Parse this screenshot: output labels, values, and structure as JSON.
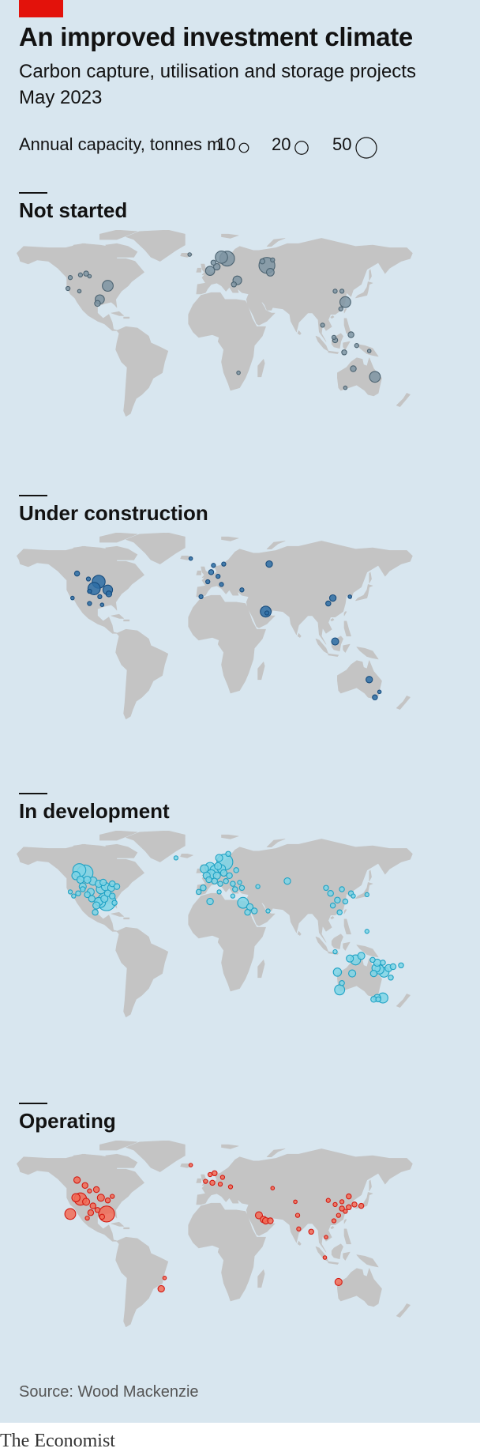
{
  "header": {
    "title": "An improved investment climate",
    "subtitle": "Carbon capture, utilisation and storage projects",
    "date": "May 2023"
  },
  "legend": {
    "label": "Annual capacity, tonnes m",
    "sizes": [
      {
        "label": "10",
        "value": 10
      },
      {
        "label": "20",
        "value": 20
      },
      {
        "label": "50",
        "value": 50
      }
    ]
  },
  "chart_data": [
    {
      "type": "scatter",
      "title": "Not started",
      "color": "#7f95a3",
      "stroke": "#4d6472",
      "size_variable": "Annual capacity, tonnes m",
      "points": [
        {
          "lon": -121,
          "lat": 48,
          "v": 2
        },
        {
          "lon": -112,
          "lat": 50,
          "v": 2
        },
        {
          "lon": -107,
          "lat": 51,
          "v": 3
        },
        {
          "lon": -123,
          "lat": 40,
          "v": 2
        },
        {
          "lon": -113,
          "lat": 38,
          "v": 1.5
        },
        {
          "lon": -88,
          "lat": 42,
          "v": 14
        },
        {
          "lon": -95,
          "lat": 32,
          "v": 10
        },
        {
          "lon": -97,
          "lat": 29,
          "v": 4
        },
        {
          "lon": -104,
          "lat": 49,
          "v": 1.5
        },
        {
          "lon": -16,
          "lat": 65,
          "v": 1.5
        },
        {
          "lon": 5,
          "lat": 59,
          "v": 3
        },
        {
          "lon": 12,
          "lat": 63,
          "v": 18
        },
        {
          "lon": 17,
          "lat": 62,
          "v": 26
        },
        {
          "lon": 2,
          "lat": 53,
          "v": 10
        },
        {
          "lon": 8,
          "lat": 56,
          "v": 5
        },
        {
          "lon": 26,
          "lat": 46,
          "v": 9
        },
        {
          "lon": 23,
          "lat": 43,
          "v": 3
        },
        {
          "lon": 52,
          "lat": 57,
          "v": 30
        },
        {
          "lon": 55,
          "lat": 52,
          "v": 7
        },
        {
          "lon": 48,
          "lat": 60,
          "v": 3
        },
        {
          "lon": 57,
          "lat": 61,
          "v": 2
        },
        {
          "lon": 112,
          "lat": 38,
          "v": 2
        },
        {
          "lon": 118,
          "lat": 38,
          "v": 2
        },
        {
          "lon": 121,
          "lat": 30,
          "v": 14
        },
        {
          "lon": 117,
          "lat": 25,
          "v": 2
        },
        {
          "lon": 101,
          "lat": 13,
          "v": 2
        },
        {
          "lon": 111,
          "lat": 4,
          "v": 2
        },
        {
          "lon": 112,
          "lat": 2,
          "v": 3
        },
        {
          "lon": 126,
          "lat": 6,
          "v": 4
        },
        {
          "lon": 131,
          "lat": -2,
          "v": 2
        },
        {
          "lon": 142,
          "lat": -6,
          "v": 1.5
        },
        {
          "lon": 120,
          "lat": -7,
          "v": 3
        },
        {
          "lon": 128,
          "lat": -19,
          "v": 4
        },
        {
          "lon": 147,
          "lat": -25,
          "v": 14
        },
        {
          "lon": 121,
          "lat": -33,
          "v": 1.5
        },
        {
          "lon": 27,
          "lat": -22,
          "v": 1.5
        }
      ]
    },
    {
      "type": "scatter",
      "title": "Under construction",
      "color": "#2e6ea6",
      "stroke": "#174c7e",
      "size_variable": "Annual capacity, tonnes m",
      "points": [
        {
          "lon": -115,
          "lat": 53,
          "v": 3
        },
        {
          "lon": -105,
          "lat": 49,
          "v": 2
        },
        {
          "lon": -96,
          "lat": 47,
          "v": 20
        },
        {
          "lon": -100,
          "lat": 42,
          "v": 18
        },
        {
          "lon": -88,
          "lat": 41,
          "v": 11
        },
        {
          "lon": -87,
          "lat": 38,
          "v": 4
        },
        {
          "lon": -104,
          "lat": 40,
          "v": 2
        },
        {
          "lon": -95,
          "lat": 36,
          "v": 2
        },
        {
          "lon": -104,
          "lat": 31,
          "v": 2
        },
        {
          "lon": -93,
          "lat": 30,
          "v": 1.5
        },
        {
          "lon": -119,
          "lat": 35,
          "v": 1.5
        },
        {
          "lon": -15,
          "lat": 64,
          "v": 1.5
        },
        {
          "lon": 5,
          "lat": 59,
          "v": 2
        },
        {
          "lon": 14,
          "lat": 60,
          "v": 2
        },
        {
          "lon": 3,
          "lat": 54,
          "v": 3
        },
        {
          "lon": 9,
          "lat": 51,
          "v": 2
        },
        {
          "lon": 0,
          "lat": 47,
          "v": 2
        },
        {
          "lon": 12,
          "lat": 45,
          "v": 2
        },
        {
          "lon": 30,
          "lat": 41,
          "v": 2
        },
        {
          "lon": -6,
          "lat": 36,
          "v": 2
        },
        {
          "lon": 54,
          "lat": 60,
          "v": 5
        },
        {
          "lon": 51,
          "lat": 25,
          "v": 14
        },
        {
          "lon": 52,
          "lat": 24,
          "v": 2
        },
        {
          "lon": 110,
          "lat": 35,
          "v": 5
        },
        {
          "lon": 106,
          "lat": 31,
          "v": 3
        },
        {
          "lon": 125,
          "lat": 36,
          "v": 1.5
        },
        {
          "lon": 112,
          "lat": 3,
          "v": 6
        },
        {
          "lon": 142,
          "lat": -25,
          "v": 5
        },
        {
          "lon": 147,
          "lat": -38,
          "v": 3
        },
        {
          "lon": 151,
          "lat": -34,
          "v": 1.5
        }
      ]
    },
    {
      "type": "scatter",
      "title": "In development",
      "color": "#7fd5e6",
      "stroke": "#1fa2c4",
      "size_variable": "Annual capacity, tonnes m",
      "points": [
        {
          "lon": -113,
          "lat": 54,
          "v": 20
        },
        {
          "lon": -108,
          "lat": 52,
          "v": 30
        },
        {
          "lon": -116,
          "lat": 50,
          "v": 8
        },
        {
          "lon": -112,
          "lat": 47,
          "v": 6
        },
        {
          "lon": -106,
          "lat": 47,
          "v": 6
        },
        {
          "lon": -101,
          "lat": 46,
          "v": 8
        },
        {
          "lon": -96,
          "lat": 44,
          "v": 6
        },
        {
          "lon": -90,
          "lat": 42,
          "v": 8
        },
        {
          "lon": -85,
          "lat": 41,
          "v": 6
        },
        {
          "lon": -94,
          "lat": 40,
          "v": 10
        },
        {
          "lon": -88,
          "lat": 37,
          "v": 5
        },
        {
          "lon": -84,
          "lat": 35,
          "v": 4
        },
        {
          "lon": -91,
          "lat": 33,
          "v": 6
        },
        {
          "lon": -96,
          "lat": 31,
          "v": 8
        },
        {
          "lon": -89,
          "lat": 31,
          "v": 40
        },
        {
          "lon": -94,
          "lat": 30,
          "v": 10
        },
        {
          "lon": -98,
          "lat": 28,
          "v": 6
        },
        {
          "lon": -102,
          "lat": 33,
          "v": 5
        },
        {
          "lon": -106,
          "lat": 36,
          "v": 4
        },
        {
          "lon": -110,
          "lat": 40,
          "v": 3
        },
        {
          "lon": -114,
          "lat": 37,
          "v": 3
        },
        {
          "lon": -118,
          "lat": 35,
          "v": 2
        },
        {
          "lon": -121,
          "lat": 38,
          "v": 2
        },
        {
          "lon": -84,
          "lat": 44,
          "v": 4
        },
        {
          "lon": -80,
          "lat": 42,
          "v": 4
        },
        {
          "lon": -110,
          "lat": 42,
          "v": 6
        },
        {
          "lon": -103,
          "lat": 38,
          "v": 6
        },
        {
          "lon": -92,
          "lat": 45,
          "v": 5
        },
        {
          "lon": -99,
          "lat": 23,
          "v": 4
        },
        {
          "lon": -82,
          "lat": 30,
          "v": 3
        },
        {
          "lon": -28,
          "lat": 63,
          "v": 2
        },
        {
          "lon": 15,
          "lat": 60,
          "v": 30
        },
        {
          "lon": 10,
          "lat": 63,
          "v": 6
        },
        {
          "lon": 18,
          "lat": 66,
          "v": 3
        },
        {
          "lon": 2,
          "lat": 56,
          "v": 12
        },
        {
          "lon": -3,
          "lat": 55,
          "v": 8
        },
        {
          "lon": 6,
          "lat": 54,
          "v": 10
        },
        {
          "lon": 9,
          "lat": 57,
          "v": 6
        },
        {
          "lon": 12,
          "lat": 55,
          "v": 8
        },
        {
          "lon": 3,
          "lat": 51,
          "v": 10
        },
        {
          "lon": -1,
          "lat": 50,
          "v": 6
        },
        {
          "lon": 8,
          "lat": 50,
          "v": 6
        },
        {
          "lon": 14,
          "lat": 52,
          "v": 5
        },
        {
          "lon": 19,
          "lat": 50,
          "v": 4
        },
        {
          "lon": 1,
          "lat": 47,
          "v": 4
        },
        {
          "lon": 6,
          "lat": 46,
          "v": 4
        },
        {
          "lon": -4,
          "lat": 41,
          "v": 4
        },
        {
          "lon": 11,
          "lat": 44,
          "v": 3
        },
        {
          "lon": 16,
          "lat": 46,
          "v": 3
        },
        {
          "lon": 22,
          "lat": 44,
          "v": 3
        },
        {
          "lon": 24,
          "lat": 40,
          "v": 3
        },
        {
          "lon": 28,
          "lat": 45,
          "v": 2
        },
        {
          "lon": 25,
          "lat": 54,
          "v": 3
        },
        {
          "lon": -8,
          "lat": 38,
          "v": 3
        },
        {
          "lon": 10,
          "lat": 38,
          "v": 2
        },
        {
          "lon": 22,
          "lat": 35,
          "v": 2
        },
        {
          "lon": 2,
          "lat": 31,
          "v": 5
        },
        {
          "lon": 30,
          "lat": 41,
          "v": 3
        },
        {
          "lon": 44,
          "lat": 42,
          "v": 2
        },
        {
          "lon": 31,
          "lat": 30,
          "v": 14
        },
        {
          "lon": 37,
          "lat": 27,
          "v": 5
        },
        {
          "lon": 41,
          "lat": 24,
          "v": 4
        },
        {
          "lon": 35,
          "lat": 23,
          "v": 4
        },
        {
          "lon": 53,
          "lat": 24,
          "v": 2
        },
        {
          "lon": 70,
          "lat": 46,
          "v": 5
        },
        {
          "lon": 104,
          "lat": 41,
          "v": 3
        },
        {
          "lon": 108,
          "lat": 37,
          "v": 4
        },
        {
          "lon": 118,
          "lat": 40,
          "v": 3
        },
        {
          "lon": 126,
          "lat": 37,
          "v": 3
        },
        {
          "lon": 114,
          "lat": 32,
          "v": 4
        },
        {
          "lon": 121,
          "lat": 31,
          "v": 3
        },
        {
          "lon": 110,
          "lat": 28,
          "v": 3
        },
        {
          "lon": 116,
          "lat": 23,
          "v": 3
        },
        {
          "lon": 128,
          "lat": 35,
          "v": 2
        },
        {
          "lon": 140,
          "lat": 36,
          "v": 2
        },
        {
          "lon": 140,
          "lat": 9,
          "v": 2
        },
        {
          "lon": 112,
          "lat": -6,
          "v": 2
        },
        {
          "lon": 125,
          "lat": -11,
          "v": 6
        },
        {
          "lon": 130,
          "lat": -12,
          "v": 12
        },
        {
          "lon": 135,
          "lat": -9,
          "v": 6
        },
        {
          "lon": 145,
          "lat": -12,
          "v": 3
        },
        {
          "lon": 149,
          "lat": -14,
          "v": 6
        },
        {
          "lon": 154,
          "lat": -14,
          "v": 3
        },
        {
          "lon": 148,
          "lat": -18,
          "v": 8
        },
        {
          "lon": 151,
          "lat": -19,
          "v": 10
        },
        {
          "lon": 155,
          "lat": -21,
          "v": 12
        },
        {
          "lon": 146,
          "lat": -22,
          "v": 5
        },
        {
          "lon": 159,
          "lat": -18,
          "v": 6
        },
        {
          "lon": 163,
          "lat": -17,
          "v": 4
        },
        {
          "lon": 170,
          "lat": -16,
          "v": 3
        },
        {
          "lon": 114,
          "lat": -21,
          "v": 8
        },
        {
          "lon": 127,
          "lat": -22,
          "v": 6
        },
        {
          "lon": 118,
          "lat": -29,
          "v": 3
        },
        {
          "lon": 116,
          "lat": -34,
          "v": 12
        },
        {
          "lon": 161,
          "lat": -25,
          "v": 3
        },
        {
          "lon": 146,
          "lat": -41,
          "v": 4
        },
        {
          "lon": 149,
          "lat": -40,
          "v": 6
        },
        {
          "lon": 154,
          "lat": -40,
          "v": 12
        },
        {
          "lon": 150,
          "lat": -41,
          "v": 3
        }
      ]
    },
    {
      "type": "scatter",
      "title": "Operating",
      "color": "#f26b56",
      "stroke": "#d31a12",
      "size_variable": "Annual capacity, tonnes m",
      "points": [
        {
          "lon": -115,
          "lat": 54,
          "v": 5
        },
        {
          "lon": -108,
          "lat": 50,
          "v": 4
        },
        {
          "lon": -104,
          "lat": 46,
          "v": 2
        },
        {
          "lon": -98,
          "lat": 47,
          "v": 4
        },
        {
          "lon": -116,
          "lat": 41,
          "v": 8
        },
        {
          "lon": -112,
          "lat": 40,
          "v": 18
        },
        {
          "lon": -107,
          "lat": 38,
          "v": 6
        },
        {
          "lon": -101,
          "lat": 35,
          "v": 4
        },
        {
          "lon": -94,
          "lat": 41,
          "v": 6
        },
        {
          "lon": -88,
          "lat": 39,
          "v": 3
        },
        {
          "lon": -84,
          "lat": 42,
          "v": 2
        },
        {
          "lon": -97,
          "lat": 32,
          "v": 3
        },
        {
          "lon": -103,
          "lat": 30,
          "v": 4
        },
        {
          "lon": -89,
          "lat": 29,
          "v": 30
        },
        {
          "lon": -121,
          "lat": 29,
          "v": 14
        },
        {
          "lon": -106,
          "lat": 26,
          "v": 2
        },
        {
          "lon": -93,
          "lat": 27,
          "v": 3
        },
        {
          "lon": -38,
          "lat": -18,
          "v": 1.5
        },
        {
          "lon": -41,
          "lat": -26,
          "v": 5
        },
        {
          "lon": -15,
          "lat": 65,
          "v": 1.5
        },
        {
          "lon": 2,
          "lat": 58,
          "v": 2
        },
        {
          "lon": 6,
          "lat": 59,
          "v": 3
        },
        {
          "lon": 13,
          "lat": 56,
          "v": 2
        },
        {
          "lon": -2,
          "lat": 53,
          "v": 2
        },
        {
          "lon": 4,
          "lat": 52,
          "v": 3
        },
        {
          "lon": 11,
          "lat": 51,
          "v": 2
        },
        {
          "lon": 20,
          "lat": 49,
          "v": 2
        },
        {
          "lon": 57,
          "lat": 48,
          "v": 1.5
        },
        {
          "lon": 45,
          "lat": 28,
          "v": 6
        },
        {
          "lon": 49,
          "lat": 25,
          "v": 5
        },
        {
          "lon": 51,
          "lat": 24,
          "v": 5
        },
        {
          "lon": 55,
          "lat": 24,
          "v": 4
        },
        {
          "lon": 77,
          "lat": 38,
          "v": 1.5
        },
        {
          "lon": 79,
          "lat": 28,
          "v": 2
        },
        {
          "lon": 80,
          "lat": 18,
          "v": 2
        },
        {
          "lon": 91,
          "lat": 16,
          "v": 3
        },
        {
          "lon": 106,
          "lat": 39,
          "v": 2
        },
        {
          "lon": 112,
          "lat": 36,
          "v": 2
        },
        {
          "lon": 118,
          "lat": 38,
          "v": 2
        },
        {
          "lon": 124,
          "lat": 42,
          "v": 3
        },
        {
          "lon": 118,
          "lat": 33,
          "v": 3
        },
        {
          "lon": 121,
          "lat": 31,
          "v": 2
        },
        {
          "lon": 124,
          "lat": 34,
          "v": 3
        },
        {
          "lon": 129,
          "lat": 36,
          "v": 3
        },
        {
          "lon": 135,
          "lat": 35,
          "v": 3
        },
        {
          "lon": 115,
          "lat": 28,
          "v": 2
        },
        {
          "lon": 111,
          "lat": 24,
          "v": 2
        },
        {
          "lon": 104,
          "lat": 12,
          "v": 1.5
        },
        {
          "lon": 103,
          "lat": -3,
          "v": 1.5
        },
        {
          "lon": 115,
          "lat": -21,
          "v": 6
        }
      ]
    }
  ],
  "source": "Source: Wood Mackenzie",
  "brand": "The Economist"
}
